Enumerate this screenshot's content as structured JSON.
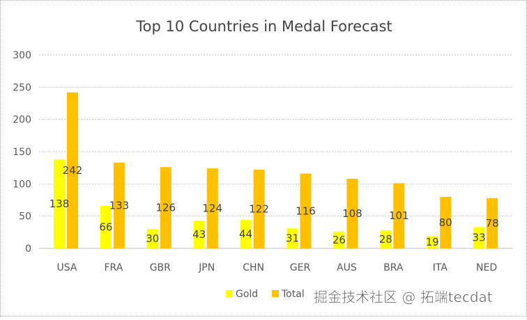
{
  "chart_data": {
    "type": "bar",
    "title": "Top 10 Countries in Medal Forecast",
    "categories": [
      "USA",
      "FRA",
      "GBR",
      "JPN",
      "CHN",
      "GER",
      "AUS",
      "BRA",
      "ITA",
      "NED"
    ],
    "series": [
      {
        "name": "Gold",
        "color": "#FFFF00",
        "values": [
          138,
          66,
          30,
          43,
          44,
          31,
          26,
          28,
          19,
          33
        ]
      },
      {
        "name": "Total",
        "color": "#FFC000",
        "values": [
          242,
          133,
          126,
          124,
          122,
          116,
          108,
          101,
          80,
          78
        ]
      }
    ],
    "yticks": [
      "0",
      "50",
      "100",
      "150",
      "200",
      "250",
      "300"
    ],
    "ylim": [
      0,
      300
    ],
    "xlabel": "",
    "ylabel": "",
    "grid": true,
    "legend": "bottom"
  },
  "watermark": "掘金技术社区 @ 拓端tecdat"
}
